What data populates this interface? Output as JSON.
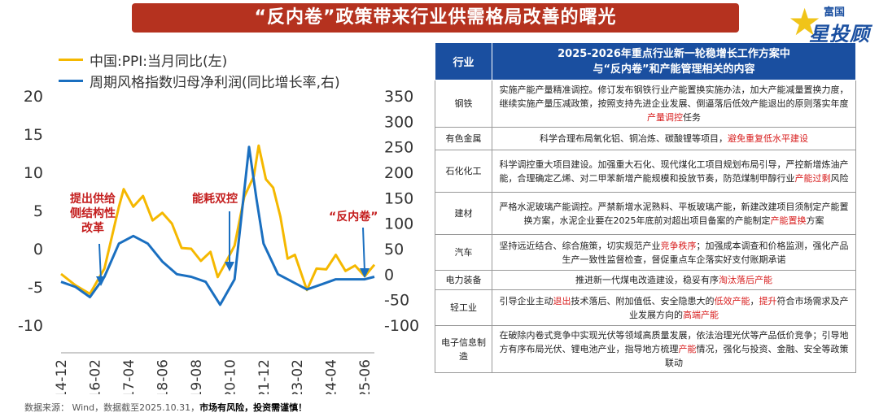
{
  "title": "“反内卷”政策带来行业供需格局改善的曙光",
  "logo": {
    "line1": "富国",
    "line2": "星投顾"
  },
  "legend": {
    "ppi": "中国:PPI:当月同比(左)",
    "profit": "周期风格指数归母净利润(同比增长率,右)"
  },
  "colors": {
    "ppi": "#f5b800",
    "profit": "#1a6fc0",
    "header": "#1a4fa0",
    "title": "#b5321f"
  },
  "annotations": [
    {
      "text": "提出供给\n侧结构性\n改革"
    },
    {
      "text": "能耗双控"
    },
    {
      "text": "“反内卷”"
    }
  ],
  "source": {
    "prefix": "数据来源： Wind，数据截至2025.10.31，",
    "bold": "市场有风险，投资需谨慎！"
  },
  "chart_data": {
    "type": "line",
    "x_ticks": [
      "14-12",
      "16-02",
      "17-04",
      "18-06",
      "19-08",
      "20-10",
      "21-12",
      "23-02",
      "24-04",
      "25-06"
    ],
    "x_range": [
      "2014-12",
      "2025-10"
    ],
    "left_axis": {
      "ticks": [
        20,
        15,
        10,
        5,
        0,
        -5,
        -10
      ],
      "range": [
        -10,
        20
      ]
    },
    "right_axis": {
      "ticks": [
        350,
        300,
        250,
        200,
        150,
        100,
        50,
        0,
        -50,
        -100
      ],
      "range": [
        -100,
        350
      ]
    },
    "series": [
      {
        "name": "中国:PPI:当月同比(左)",
        "axis": "left",
        "x": [
          "2014-12",
          "2015-06",
          "2015-12",
          "2016-06",
          "2016-12",
          "2017-02",
          "2017-06",
          "2017-10",
          "2018-02",
          "2018-06",
          "2018-10",
          "2019-02",
          "2019-06",
          "2019-10",
          "2020-02",
          "2020-05",
          "2020-08",
          "2020-12",
          "2021-04",
          "2021-08",
          "2021-10",
          "2022-01",
          "2022-04",
          "2022-07",
          "2022-10",
          "2023-01",
          "2023-06",
          "2023-10",
          "2024-02",
          "2024-06",
          "2024-10",
          "2025-02",
          "2025-06",
          "2025-10"
        ],
        "values": [
          -3.3,
          -4.8,
          -5.9,
          -2.6,
          5.5,
          7.8,
          5.5,
          6.9,
          3.7,
          4.7,
          3.3,
          0.1,
          0.0,
          -1.6,
          -0.4,
          -3.7,
          -2.0,
          0.4,
          6.8,
          9.5,
          13.5,
          9.1,
          8.0,
          4.2,
          -1.3,
          -0.8,
          -5.4,
          -2.6,
          -2.7,
          -0.8,
          -2.9,
          -2.2,
          -3.6,
          -2.1
        ]
      },
      {
        "name": "周期风格指数归母净利润(同比增长率,右)",
        "axis": "right",
        "x": [
          "2014-12",
          "2015-06",
          "2015-12",
          "2016-06",
          "2016-12",
          "2017-06",
          "2017-12",
          "2018-06",
          "2018-12",
          "2019-06",
          "2019-12",
          "2020-06",
          "2020-12",
          "2021-06",
          "2021-09",
          "2021-12",
          "2022-06",
          "2022-12",
          "2023-06",
          "2023-12",
          "2024-06",
          "2024-12",
          "2025-06",
          "2025-10"
        ],
        "values": [
          -15,
          -25,
          -45,
          -5,
          60,
          75,
          60,
          25,
          0,
          -5,
          -15,
          -60,
          -10,
          250,
          150,
          60,
          0,
          -15,
          -30,
          -20,
          -10,
          -10,
          -10,
          -5
        ]
      }
    ]
  },
  "table": {
    "header_col1": "行业",
    "header_col2": "2025-2026年重点行业新一轮稳增长工作方案中\n与“反内卷”和产能管理相关的内容",
    "rows": [
      {
        "industry": "钢铁",
        "content": "实施产能产量精准调控。修订发布钢铁行业产能置换实施办法，加大产能减量置换力度，继续实施产量压减政策，按照支持先进企业发展、倒逼落后低效产能退出的原则落实年度",
        "hl": "产量调控",
        "tail": "任务"
      },
      {
        "industry": "有色金属",
        "content": "科学合理布局氧化铝、铜冶炼、碳酸锂等项目，",
        "hl": "避免重复低水平建设",
        "tail": ""
      },
      {
        "industry": "石化化工",
        "content": "科学调控重大项目建设。加强重大石化、现代煤化工项目规划布局引导，严控新增炼油产能，合理确定乙烯、对二甲苯新增产能规模和投放节奏，防范煤制甲醇行业",
        "hl": "产能过剩",
        "tail": "风险"
      },
      {
        "industry": "建材",
        "content": "严格水泥玻璃产能调控。严禁新增水泥熟料、平板玻璃产能，新建改建项目须制定产能置换方案，水泥企业要在2025年底前对超出项目备案的产能制定",
        "hl": "产能置换",
        "tail": "方案"
      },
      {
        "industry": "汽车",
        "content": "坚持远近结合、综合施策，切实规范产业",
        "hl": "竞争秩序",
        "tail": "；加强成本调查和价格监测，强化产品生产一致性监督检查，督促重点车企落实好支付账期承诺"
      },
      {
        "industry": "电力装备",
        "content": "推进新一代煤电改造建设，稳妥有序",
        "hl": "淘汰落后产能",
        "tail": ""
      },
      {
        "industry": "轻工业",
        "content": "引导企业主动",
        "hl": "退出",
        "tail": "技术落后、附加值低、安全隐患大的",
        "hl2": "低效产能",
        "tail2": "，",
        "hl3": "提升",
        "tail3": "符合市场需求及产业发展方向的",
        "hl4": "高端产能",
        "tail4": ""
      },
      {
        "industry": "电子信息制造",
        "content": "在破除内卷式竞争中实现光伏等领域高质量发展，依法治理光伏等产品低价竞争；引导地方有序布局光伏、锂电池产业，指导地方梳理",
        "hl": "产能",
        "tail": "情况，强化与投资、金融、安全等政策联动"
      }
    ]
  }
}
